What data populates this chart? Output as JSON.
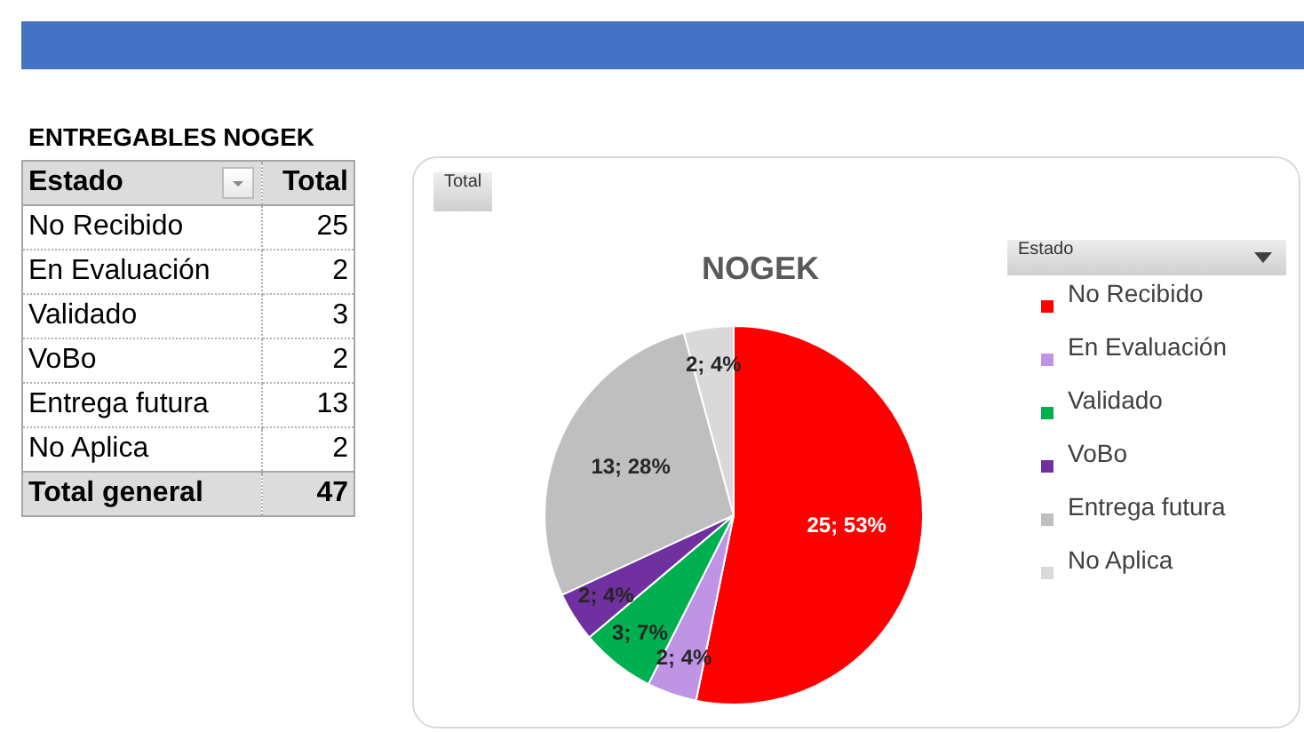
{
  "chart_data": [
    {
      "type": "other",
      "title": "ENTREGABLES NOGEK",
      "categories": [
        "No Recibido",
        "En Evaluación",
        "Validado",
        "VoBo",
        "Entrega futura",
        "No Aplica"
      ],
      "values": [
        25,
        2,
        3,
        2,
        13,
        2
      ],
      "data_labels": true,
      "annotations": [
        "Estado",
        "Total",
        "Total general",
        "47"
      ]
    },
    {
      "type": "pie",
      "title": "NOGEK",
      "categories": [
        "No Recibido",
        "En Evaluación",
        "Validado",
        "VoBo",
        "Entrega futura",
        "No Aplica"
      ],
      "values": [
        25,
        2,
        3,
        2,
        13,
        2
      ],
      "colors": [
        "#ff0000",
        "#bf94e4",
        "#00b050",
        "#7030a0",
        "#bfbfbf",
        "#d9d9d9"
      ],
      "value_labels": [
        "25; 53%",
        "2; 4%",
        "3; 7%",
        "2; 4%",
        "13; 28%",
        "2; 4%"
      ],
      "legend": "right",
      "legend_title": "Estado",
      "annotations": [
        "Total"
      ]
    }
  ]
}
